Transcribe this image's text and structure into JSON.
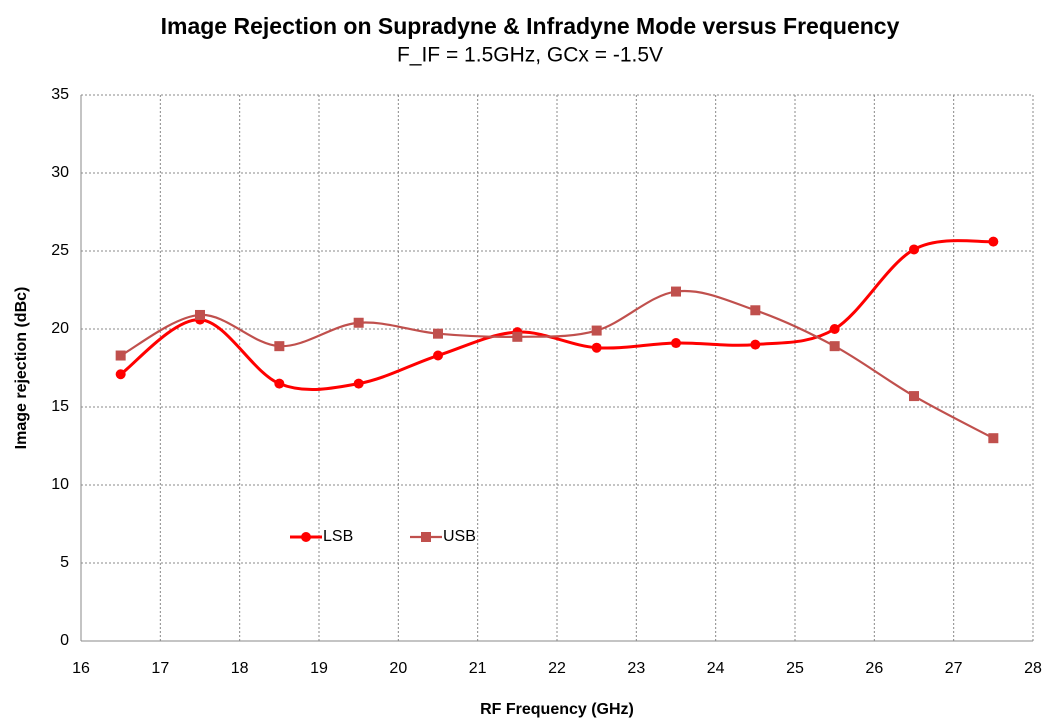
{
  "chart_data": {
    "type": "line",
    "title": "Image Rejection on Supradyne & Infradyne Mode versus Frequency",
    "subtitle": "F_IF = 1.5GHz, GCx = -1.5V",
    "x_label": "RF Frequency (GHz)",
    "y_label": "Image rejection (dBc)",
    "x": [
      16.5,
      17.5,
      18.5,
      19.5,
      20.5,
      21.5,
      22.5,
      23.5,
      24.5,
      25.5,
      26.5,
      27.5
    ],
    "series": [
      {
        "name": "LSB",
        "color": "#ff0000",
        "values": [
          17.1,
          20.6,
          16.5,
          16.5,
          18.3,
          19.8,
          18.8,
          19.1,
          19.0,
          20.0,
          25.1,
          25.6
        ]
      },
      {
        "name": "USB",
        "color": "#c0504d",
        "values": [
          18.3,
          20.9,
          18.9,
          20.4,
          19.7,
          19.5,
          19.9,
          22.4,
          21.2,
          18.9,
          15.7,
          13.0
        ]
      }
    ],
    "xlim": [
      16,
      28
    ],
    "xticks": [
      16,
      17,
      18,
      19,
      20,
      21,
      22,
      23,
      24,
      25,
      26,
      27,
      28
    ],
    "ylim": [
      0,
      35
    ],
    "yticks": [
      0,
      5,
      10,
      15,
      20,
      25,
      30,
      35
    ],
    "grid": true
  }
}
